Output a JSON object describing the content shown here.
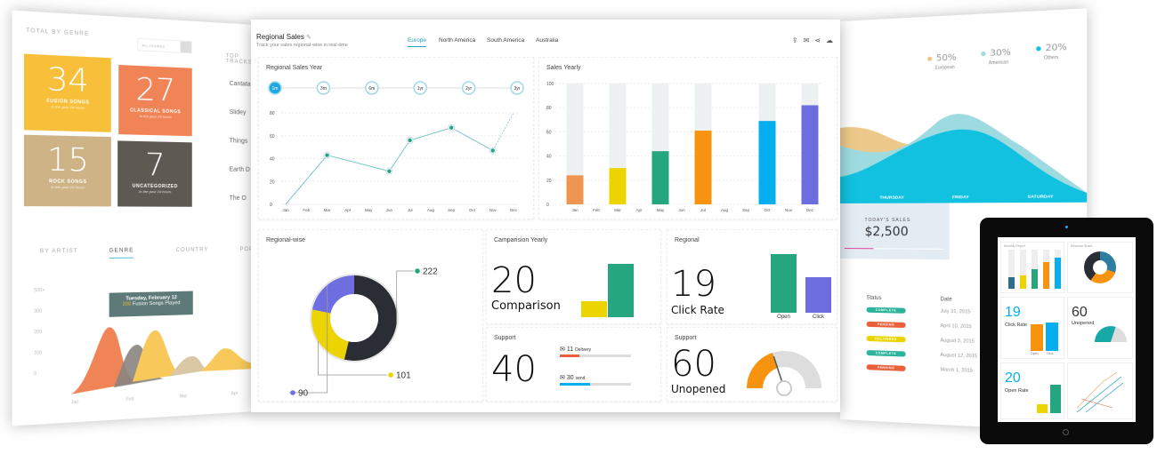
{
  "left_panel": {
    "section_title": "TOTAL BY GENRE",
    "genre_select": "ALL GENRES",
    "top_tracks_title": "TOP TRACKS",
    "tiles": [
      {
        "value": "34",
        "label": "FUSION SONGS",
        "sub": "in the past 24 hours",
        "color": "#f8bf3a"
      },
      {
        "value": "27",
        "label": "CLASSICAL SONGS",
        "sub": "in the past 24 hours",
        "color": "#f08457"
      },
      {
        "value": "15",
        "label": "ROCK SONGS",
        "sub": "in the past 24 hours",
        "color": "#cdb386"
      },
      {
        "value": "7",
        "label": "UNCATEGORIZED",
        "sub": "in the past 24 hours",
        "color": "#5f5954"
      }
    ],
    "tracks": [
      "Cantata",
      "Slidey",
      "Things",
      "Earth D",
      "The O"
    ],
    "tabs": [
      "BY ARTIST",
      "GENRE",
      "COUNTRY",
      "POPULAR"
    ],
    "active_tab": "GENRE",
    "y_ticks": [
      "500+",
      "300",
      "200",
      "100",
      "0"
    ],
    "x_ticks": [
      "Jan",
      "Feb",
      "Mar",
      "Apr"
    ],
    "tooltip": {
      "title": "Tuesday, February 12",
      "value": "200",
      "text": "Fusion Songs Played"
    }
  },
  "main": {
    "title": "Regional Sales",
    "subtitle": "Track your sales regional-wise in real-time",
    "tabs": [
      "Europe",
      "North America",
      "South America",
      "Australia"
    ],
    "active_tab": "Europe",
    "toolbar_icons": [
      "export-icon",
      "mail-icon",
      "share-icon",
      "cloud-download-icon"
    ],
    "ranges": [
      "1m",
      "3m",
      "6m",
      "1yr",
      "2yr",
      "3yr"
    ],
    "active_range": "1m",
    "regional_title": "Regional-wise",
    "comparison": {
      "title": "Camparision Yearly",
      "value": "20",
      "label": "Comparison",
      "bars": [
        {
          "value": 30,
          "color": "#ecd400"
        },
        {
          "value": 100,
          "color": "#25a67f"
        }
      ]
    },
    "click": {
      "title": "Regional",
      "value": "19",
      "label": "Click Rate",
      "bars": [
        {
          "name": "Open",
          "value": 100,
          "color": "#25a67f"
        },
        {
          "name": "Click",
          "value": 60,
          "color": "#6d6de0"
        }
      ]
    },
    "support1": {
      "title": "Support",
      "value": "40",
      "items": [
        {
          "count": "11",
          "label": "Delivery",
          "progress": 0.28,
          "color": "#e8603c"
        },
        {
          "count": "30",
          "label": "send",
          "progress": 0.43,
          "color": "#04aeef"
        }
      ]
    },
    "support2": {
      "title": "Support",
      "value": "60",
      "label": "Unopened",
      "gauge": 0.4,
      "gauge_color": "#f7930f"
    }
  },
  "chart_data": [
    {
      "type": "line",
      "title": "Regional Sales Year",
      "categories": [
        "Jan",
        "Feb",
        "Mar",
        "Apr",
        "May",
        "Jun",
        "Jul",
        "Aug",
        "Sep",
        "Oct",
        "Nov",
        "Dec"
      ],
      "values": [
        0,
        null,
        43,
        null,
        null,
        29,
        56,
        null,
        67,
        null,
        47,
        80
      ],
      "ylim": [
        0,
        80
      ],
      "y_ticks": [
        0,
        20,
        40,
        60,
        80
      ],
      "color": "#25a67f",
      "grid": true
    },
    {
      "type": "bar",
      "title": "Sales Yearly",
      "categories": [
        "Jan",
        "Feb",
        "Mar",
        "Apr",
        "May",
        "Jun",
        "Jul",
        "Aug",
        "Sep",
        "Oct",
        "Nov",
        "Dec"
      ],
      "values": [
        24,
        null,
        30,
        null,
        44,
        null,
        61,
        null,
        null,
        69,
        null,
        82
      ],
      "colors": [
        "#ee9550",
        null,
        "#ecd400",
        null,
        "#25a67f",
        null,
        "#f7930f",
        null,
        null,
        "#04aeef",
        null,
        "#6d6de0"
      ],
      "ylim": [
        0,
        100
      ],
      "y_ticks": [
        0,
        20,
        40,
        60,
        80,
        100
      ],
      "grid": true
    },
    {
      "type": "pie",
      "title": "Regional-wise",
      "slices": [
        {
          "value": 222,
          "color": "#2a2d33"
        },
        {
          "value": 101,
          "color": "#ecd400"
        },
        {
          "value": 90,
          "color": "#6e6ee0"
        }
      ]
    }
  ],
  "right_panel": {
    "legend": [
      {
        "pct": "50%",
        "label": "European",
        "color": "#ecc98a"
      },
      {
        "pct": "30%",
        "label": "American",
        "color": "#9edbe0"
      },
      {
        "pct": "20%",
        "label": "Others",
        "color": "#12c1df"
      }
    ],
    "days": [
      "THURSDAY",
      "FRIDAY",
      "SATURDAY"
    ],
    "sales_label": "TODAY'S SALES",
    "sales_value": "$2,500",
    "status_header": "Status",
    "date_header": "Date",
    "rows": [
      {
        "status": "COMPLETE",
        "color": "#2bb39c",
        "date": "July 31, 2015"
      },
      {
        "status": "PENDING",
        "color": "#e8603c",
        "date": "April 10, 2015"
      },
      {
        "status": "DELIVERED",
        "color": "#ecd400",
        "date": "August 3, 2015"
      },
      {
        "status": "COMPLETE",
        "color": "#2bb39c",
        "date": "August 12, 2015"
      },
      {
        "status": "PENDING",
        "color": "#e8603c",
        "date": "March 1, 2015"
      }
    ]
  },
  "tablet": {
    "monthly_title": "Monthly Report",
    "revenue_title": "Revenue Share",
    "click_value": "19",
    "click_label": "Click Rate",
    "unopened_value": "60",
    "unopened_label": "Unopened",
    "open_value": "20",
    "open_label": "Open Rate",
    "bar_labels": [
      "Open",
      "Click"
    ]
  }
}
